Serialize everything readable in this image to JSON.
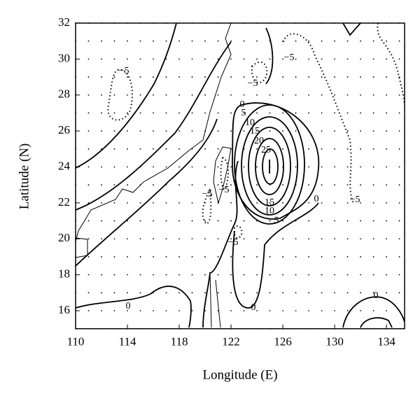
{
  "chart_data": {
    "type": "contour",
    "x_label": "Longitude (E)",
    "y_label": "Latitude (N)",
    "xlim": [
      110,
      135.4
    ],
    "ylim": [
      15,
      32
    ],
    "xticks": [
      110,
      114,
      118,
      122,
      126,
      130,
      134
    ],
    "yticks": [
      16,
      18,
      20,
      22,
      24,
      26,
      28,
      30,
      32
    ],
    "grid": true,
    "contour_labels": [
      "−5",
      "−5",
      "−5",
      "−5",
      "−5",
      "−5",
      "−5",
      "0",
      "5",
      "10",
      "15",
      "20",
      "25",
      "15",
      "10",
      "5",
      "0",
      "0",
      "0",
      "0"
    ]
  }
}
